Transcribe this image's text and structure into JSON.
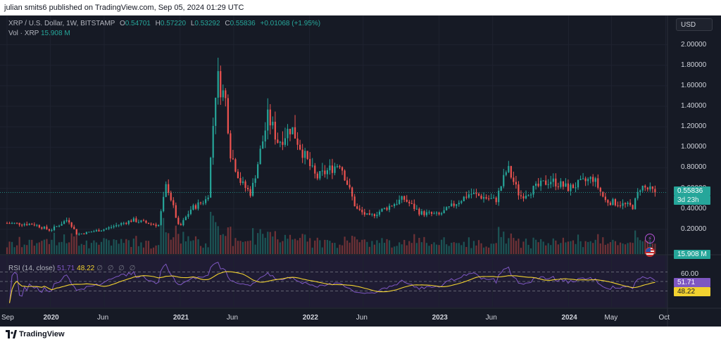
{
  "publish_line": "julian smits6 published on TradingView.com, Sep 05, 2024 01:29 UTC",
  "header": {
    "symbol": "XRP / U.S. Dollar, 1W, BITSTAMP",
    "o_label": "O",
    "o_value": "0.54701",
    "h_label": "H",
    "h_value": "0.57220",
    "l_label": "L",
    "l_value": "0.53292",
    "c_label": "C",
    "c_value": "0.55836",
    "change": "+0.01068 (+1.95%)"
  },
  "vol_label": {
    "name": "Vol · XRP",
    "value": "15.908 M"
  },
  "rsi_label": {
    "name": "RSI (14, close)",
    "value_a": "51.71",
    "value_b": "48.22",
    "placeholders": "∅ ∅ ∅ ∅"
  },
  "currency_button": "USD",
  "price_tag": {
    "value": "0.55836",
    "countdown": "3d 23h"
  },
  "vol_tag": "15.908 M",
  "rsi_tags": {
    "rsi": "51.71",
    "ma": "48.22"
  },
  "rsi_axis_label": "60.00",
  "brand": "TradingView",
  "colors": {
    "up": "#26a69a",
    "down": "#ef5350",
    "rsi": "#7e57c2",
    "rsi_ma": "#f2d230",
    "background": "#161a25"
  },
  "icons": [
    "bolt-icon",
    "us-flag-icon",
    "tradingview-logo-icon"
  ],
  "chart_data": {
    "type": "candlestick",
    "title": "XRP / U.S. Dollar, 1W, BITSTAMP",
    "y_axis": {
      "ticks": [
        "2.00000",
        "1.80000",
        "1.60000",
        "1.40000",
        "1.20000",
        "1.00000",
        "0.80000",
        "0.60000",
        "0.40000",
        "0.20000"
      ],
      "tick_values": [
        2.0,
        1.8,
        1.6,
        1.4,
        1.2,
        1.0,
        0.8,
        0.6,
        0.4,
        0.2
      ],
      "range": [
        0.0,
        2.1
      ]
    },
    "x_axis": {
      "ticks": [
        {
          "label": "Sep",
          "date": "2019-09-01",
          "bold": false
        },
        {
          "label": "2020",
          "date": "2020-01-01",
          "bold": true
        },
        {
          "label": "Jun",
          "date": "2020-06-01",
          "bold": false
        },
        {
          "label": "2021",
          "date": "2021-01-01",
          "bold": true
        },
        {
          "label": "Jun",
          "date": "2021-06-01",
          "bold": false
        },
        {
          "label": "2022",
          "date": "2022-01-01",
          "bold": true
        },
        {
          "label": "Jun",
          "date": "2022-06-01",
          "bold": false
        },
        {
          "label": "2023",
          "date": "2023-01-01",
          "bold": true
        },
        {
          "label": "Jun",
          "date": "2023-06-01",
          "bold": false
        },
        {
          "label": "2024",
          "date": "2024-01-01",
          "bold": true
        },
        {
          "label": "May",
          "date": "2024-05-01",
          "bold": false
        },
        {
          "label": "Oct",
          "date": "2024-10-01",
          "bold": false
        }
      ],
      "range": [
        "2019-09-01",
        "2024-10-06"
      ]
    },
    "price_anchors": [
      [
        "2019-09-01",
        0.26
      ],
      [
        "2019-11-15",
        0.25
      ],
      [
        "2020-01-01",
        0.19
      ],
      [
        "2020-02-20",
        0.3
      ],
      [
        "2020-03-16",
        0.15
      ],
      [
        "2020-06-01",
        0.2
      ],
      [
        "2020-08-20",
        0.29
      ],
      [
        "2020-11-01",
        0.24
      ],
      [
        "2020-11-24",
        0.65
      ],
      [
        "2020-12-29",
        0.21
      ],
      [
        "2021-02-01",
        0.4
      ],
      [
        "2021-03-20",
        0.5
      ],
      [
        "2021-04-14",
        1.7
      ],
      [
        "2021-05-10",
        1.45
      ],
      [
        "2021-05-23",
        0.95
      ],
      [
        "2021-06-22",
        0.65
      ],
      [
        "2021-07-20",
        0.55
      ],
      [
        "2021-09-06",
        1.3
      ],
      [
        "2021-10-05",
        1.05
      ],
      [
        "2021-11-10",
        1.2
      ],
      [
        "2021-12-20",
        0.9
      ],
      [
        "2022-01-20",
        0.7
      ],
      [
        "2022-03-28",
        0.85
      ],
      [
        "2022-05-12",
        0.4
      ],
      [
        "2022-06-18",
        0.32
      ],
      [
        "2022-09-23",
        0.5
      ],
      [
        "2022-11-09",
        0.36
      ],
      [
        "2023-01-01",
        0.34
      ],
      [
        "2023-03-29",
        0.55
      ],
      [
        "2023-06-10",
        0.48
      ],
      [
        "2023-07-13",
        0.8
      ],
      [
        "2023-08-17",
        0.52
      ],
      [
        "2023-11-10",
        0.68
      ],
      [
        "2024-01-01",
        0.6
      ],
      [
        "2024-03-11",
        0.7
      ],
      [
        "2024-04-13",
        0.48
      ],
      [
        "2024-07-01",
        0.42
      ],
      [
        "2024-07-22",
        0.62
      ],
      [
        "2024-09-02",
        0.55836
      ]
    ],
    "volume": {
      "last": "15.908 M"
    },
    "rsi": {
      "label": "RSI (14, close)",
      "length": 14,
      "source": "close",
      "last_rsi": 51.71,
      "last_ma": 48.22,
      "band_upper": 70,
      "band_mid": 50,
      "band_lower": 30,
      "axis_ticks": [
        60
      ]
    },
    "last_price": 0.55836
  }
}
